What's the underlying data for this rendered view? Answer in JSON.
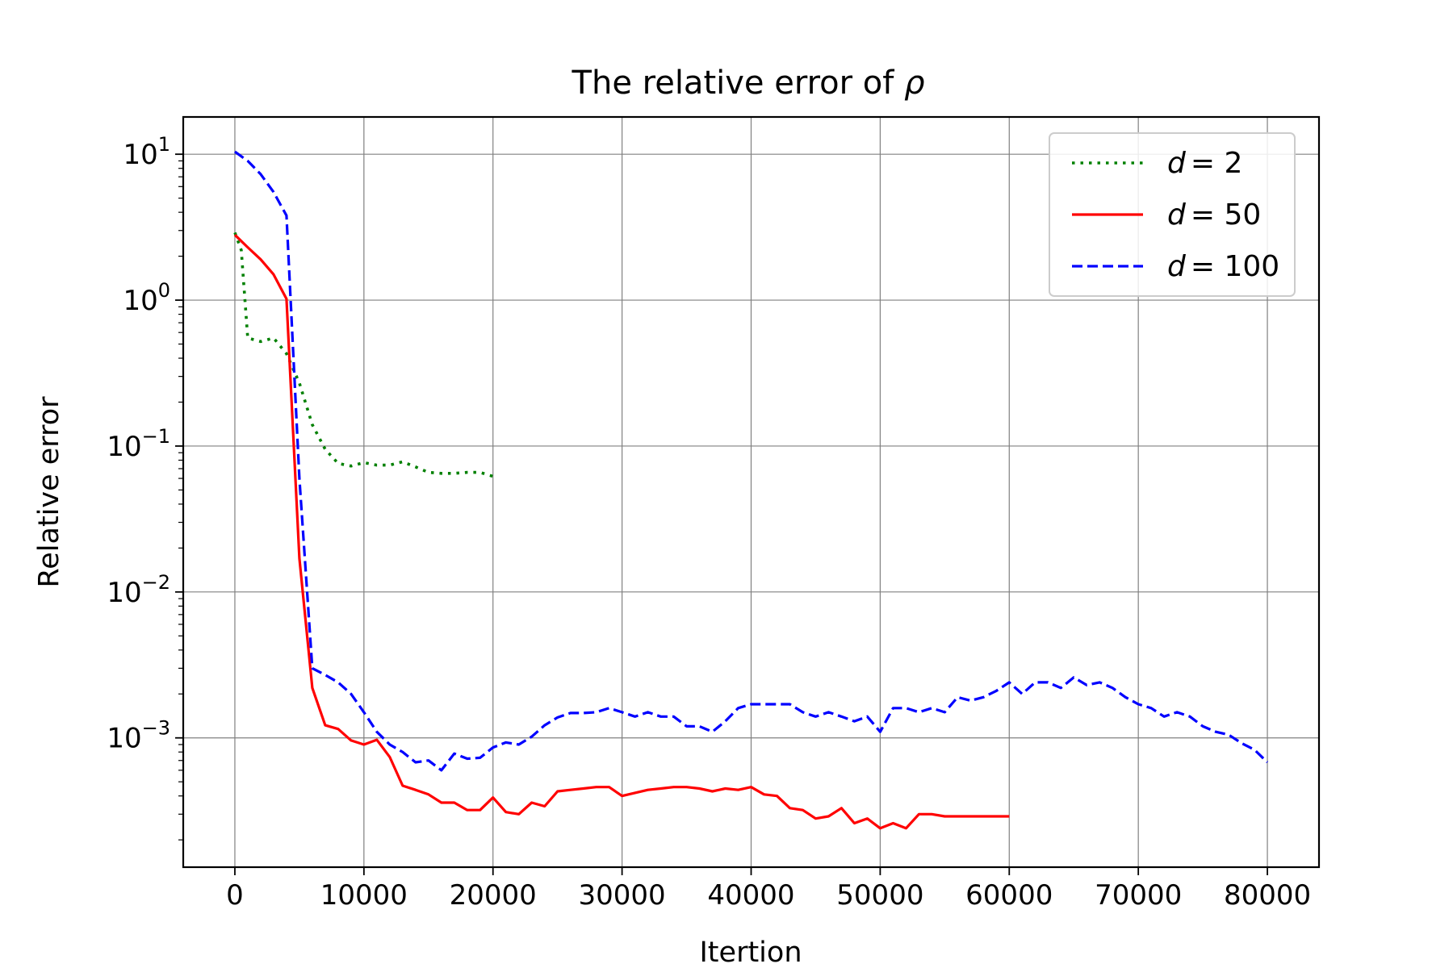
{
  "chart_data": {
    "type": "line",
    "title_prefix": "The relative error of",
    "title_symbol": "ρ",
    "xlabel": "Itertion",
    "ylabel": "Relative error",
    "xlim": [
      -4000,
      84000
    ],
    "ylim": [
      0.00013,
      18
    ],
    "yscale": "log",
    "grid": true,
    "legend_position": "top-right",
    "x_ticks": [
      0,
      10000,
      20000,
      30000,
      40000,
      50000,
      60000,
      70000,
      80000
    ],
    "y_ticks": [
      {
        "value": 0.001,
        "base": "10",
        "exp": "−3"
      },
      {
        "value": 0.01,
        "base": "10",
        "exp": "−2"
      },
      {
        "value": 0.1,
        "base": "10",
        "exp": "−1"
      },
      {
        "value": 1,
        "base": "10",
        "exp": "0"
      },
      {
        "value": 10,
        "base": "10",
        "exp": "1"
      }
    ],
    "series": [
      {
        "name": "d = 2",
        "legend_var": "d",
        "legend_value": "= 2",
        "color": "#008000",
        "style": "dotted",
        "x": [
          0,
          500,
          1000,
          2000,
          3000,
          4000,
          5000,
          6000,
          7000,
          8000,
          9000,
          10000,
          11000,
          12000,
          13000,
          14000,
          15000,
          16000,
          17000,
          18000,
          19000,
          20000
        ],
        "y": [
          2.9,
          2.2,
          0.55,
          0.52,
          0.55,
          0.43,
          0.27,
          0.14,
          0.095,
          0.076,
          0.073,
          0.077,
          0.074,
          0.074,
          0.078,
          0.072,
          0.066,
          0.065,
          0.065,
          0.066,
          0.066,
          0.062
        ]
      },
      {
        "name": "d = 50",
        "legend_var": "d",
        "legend_value": "= 50",
        "color": "#ff0000",
        "style": "solid",
        "x": [
          0,
          1000,
          2000,
          3000,
          4000,
          5000,
          6000,
          7000,
          8000,
          9000,
          10000,
          11000,
          12000,
          13000,
          14000,
          15000,
          16000,
          17000,
          18000,
          19000,
          20000,
          21000,
          22000,
          23000,
          24000,
          25000,
          26000,
          27000,
          28000,
          29000,
          30000,
          31000,
          32000,
          33000,
          34000,
          35000,
          36000,
          37000,
          38000,
          39000,
          40000,
          41000,
          42000,
          43000,
          44000,
          45000,
          46000,
          47000,
          48000,
          49000,
          50000,
          51000,
          52000,
          53000,
          54000,
          55000,
          60000
        ],
        "y": [
          2.8,
          2.3,
          1.9,
          1.5,
          1.02,
          0.017,
          0.0022,
          0.00122,
          0.00115,
          0.00096,
          0.0009,
          0.00097,
          0.00074,
          0.00047,
          0.00044,
          0.00041,
          0.00036,
          0.00036,
          0.00032,
          0.00032,
          0.00039,
          0.00031,
          0.0003,
          0.00036,
          0.00034,
          0.00043,
          0.00044,
          0.00045,
          0.00046,
          0.00046,
          0.0004,
          0.00042,
          0.00044,
          0.00045,
          0.00046,
          0.00046,
          0.00045,
          0.00043,
          0.00045,
          0.00044,
          0.00046,
          0.00041,
          0.0004,
          0.00033,
          0.00032,
          0.00028,
          0.00029,
          0.00033,
          0.00026,
          0.00028,
          0.00024,
          0.00026,
          0.00024,
          0.0003,
          0.0003,
          0.00029,
          0.00029
        ]
      },
      {
        "name": "d = 100",
        "legend_var": "d",
        "legend_value": "= 100",
        "color": "#0000ff",
        "style": "dashed",
        "x": [
          0,
          1000,
          2000,
          3000,
          4000,
          5000,
          6000,
          7000,
          8000,
          9000,
          10000,
          11000,
          12000,
          13000,
          14000,
          15000,
          16000,
          17000,
          18000,
          19000,
          20000,
          21000,
          22000,
          23000,
          24000,
          25000,
          26000,
          27000,
          28000,
          29000,
          30000,
          31000,
          32000,
          33000,
          34000,
          35000,
          36000,
          37000,
          38000,
          39000,
          40000,
          41000,
          42000,
          43000,
          44000,
          45000,
          46000,
          47000,
          48000,
          49000,
          50000,
          51000,
          52000,
          53000,
          54000,
          55000,
          56000,
          57000,
          58000,
          59000,
          60000,
          61000,
          62000,
          63000,
          64000,
          65000,
          66000,
          67000,
          68000,
          69000,
          70000,
          71000,
          72000,
          73000,
          74000,
          75000,
          76000,
          77000,
          78000,
          79000,
          80000
        ],
        "y": [
          10.4,
          9.0,
          7.3,
          5.5,
          3.8,
          0.06,
          0.003,
          0.0027,
          0.0024,
          0.002,
          0.0015,
          0.0011,
          0.0009,
          0.0008,
          0.00068,
          0.0007,
          0.0006,
          0.00078,
          0.00072,
          0.00073,
          0.00086,
          0.00093,
          0.0009,
          0.00102,
          0.00122,
          0.00138,
          0.00148,
          0.00148,
          0.0015,
          0.0016,
          0.0015,
          0.0014,
          0.0015,
          0.0014,
          0.0014,
          0.0012,
          0.0012,
          0.0011,
          0.0013,
          0.0016,
          0.0017,
          0.0017,
          0.0017,
          0.0017,
          0.0015,
          0.0014,
          0.0015,
          0.0014,
          0.0013,
          0.0014,
          0.0011,
          0.0016,
          0.0016,
          0.0015,
          0.0016,
          0.0015,
          0.0019,
          0.0018,
          0.0019,
          0.0021,
          0.0024,
          0.002,
          0.0024,
          0.0024,
          0.0022,
          0.0026,
          0.0023,
          0.0024,
          0.0022,
          0.0019,
          0.0017,
          0.0016,
          0.0014,
          0.0015,
          0.0014,
          0.0012,
          0.0011,
          0.00105,
          0.00092,
          0.00083,
          0.00068
        ]
      }
    ]
  }
}
